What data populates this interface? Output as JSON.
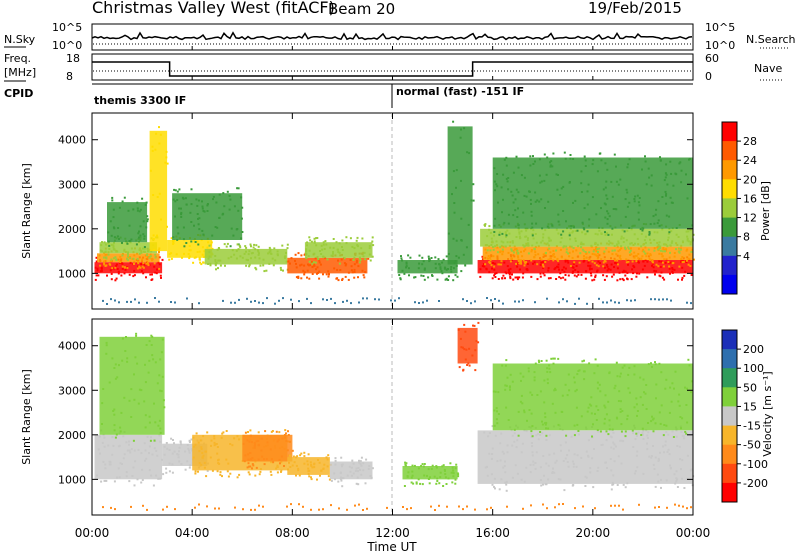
{
  "header": {
    "radar": "Christmas Valley West (fitACF)",
    "beam": "Beam 20",
    "date": "19/Feb/2015"
  },
  "noise_panel": {
    "left_label": "N.Sky",
    "left_ticks": [
      "10^5",
      "10^0"
    ],
    "right_ticks": [
      "10^5",
      "10^0"
    ],
    "right_label": "N.Search"
  },
  "freq_panel": {
    "left_label_1": "Freq.",
    "left_label_2": "[MHz]",
    "left_ticks": [
      "18",
      "8"
    ],
    "right_ticks": [
      "60",
      "0"
    ],
    "right_label": "Nave"
  },
  "cpid_panel": {
    "label": "CPID",
    "modes": [
      "themis 3300 IF",
      "normal (fast) -151 IF"
    ]
  },
  "power_colorbar": {
    "title": "Power [dB]",
    "ticks": [
      "28",
      "24",
      "20",
      "16",
      "12",
      "8",
      "4"
    ],
    "colors": [
      "#ff0000",
      "#ff5a00",
      "#ff9900",
      "#ffdd00",
      "#9bcc3a",
      "#3a9a3a",
      "#3a7aa0",
      "#2222cc",
      "#0000ee"
    ]
  },
  "velocity_colorbar": {
    "title": "Velocity [m s⁻¹]",
    "ticks": [
      "200",
      "100",
      "50",
      "15",
      "-15",
      "-50",
      "-100",
      "-200"
    ],
    "colors": [
      "#1b2fb8",
      "#2e6fae",
      "#2f9c5a",
      "#7fd03a",
      "#c8c8c8",
      "#f7b52a",
      "#ff8a1a",
      "#ff4a10",
      "#ff0000"
    ]
  },
  "chart_data": {
    "type": "heatmap",
    "xlabel": "Time UT",
    "x_ticks": [
      "00:00",
      "04:00",
      "08:00",
      "12:00",
      "16:00",
      "20:00",
      "00:00"
    ],
    "x_hours": [
      0,
      4,
      8,
      12,
      16,
      20,
      24
    ],
    "xlim": [
      0,
      24
    ],
    "ylabel": "Slant Range [km]",
    "y_ticks": [
      1000,
      2000,
      3000,
      4000
    ],
    "ylim": [
      200,
      4600
    ],
    "mode_change_hour": 12.0,
    "freq_mhz": [
      {
        "x0": 0,
        "x1": 3.1,
        "mhz": 17
      },
      {
        "x0": 3.1,
        "x1": 15.2,
        "mhz": 10
      },
      {
        "x0": 15.2,
        "x1": 24,
        "mhz": 17
      }
    ],
    "power_regions": [
      {
        "t0": 0.1,
        "t1": 2.8,
        "r0": 1000,
        "r1": 1250,
        "level": "28"
      },
      {
        "t0": 0.2,
        "t1": 2.7,
        "r0": 1250,
        "r1": 1450,
        "level": "20"
      },
      {
        "t0": 0.3,
        "t1": 2.6,
        "r0": 1450,
        "r1": 1700,
        "level": "12"
      },
      {
        "t0": 0.6,
        "t1": 2.2,
        "r0": 1700,
        "r1": 2600,
        "level": "8"
      },
      {
        "t0": 2.3,
        "t1": 3.0,
        "r0": 1500,
        "r1": 4200,
        "level": "16"
      },
      {
        "t0": 3.0,
        "t1": 4.8,
        "r0": 1350,
        "r1": 1750,
        "level": "16"
      },
      {
        "t0": 3.2,
        "t1": 6.0,
        "r0": 1750,
        "r1": 2800,
        "level": "8"
      },
      {
        "t0": 4.5,
        "t1": 7.8,
        "r0": 1200,
        "r1": 1550,
        "level": "12"
      },
      {
        "t0": 7.8,
        "t1": 11.0,
        "r0": 1000,
        "r1": 1350,
        "level": "24"
      },
      {
        "t0": 8.5,
        "t1": 11.2,
        "r0": 1350,
        "r1": 1700,
        "level": "12"
      },
      {
        "t0": 12.2,
        "t1": 14.6,
        "r0": 1000,
        "r1": 1300,
        "level": "8"
      },
      {
        "t0": 14.2,
        "t1": 15.2,
        "r0": 1200,
        "r1": 4300,
        "level": "8"
      },
      {
        "t0": 15.4,
        "t1": 24.0,
        "r0": 1000,
        "r1": 1300,
        "level": "28"
      },
      {
        "t0": 15.6,
        "t1": 24.0,
        "r0": 1300,
        "r1": 1600,
        "level": "20"
      },
      {
        "t0": 15.5,
        "t1": 24.0,
        "r0": 1600,
        "r1": 2000,
        "level": "12"
      },
      {
        "t0": 16.0,
        "t1": 24.0,
        "r0": 2000,
        "r1": 3600,
        "level": "8"
      }
    ],
    "velocity_regions": [
      {
        "t0": 0.1,
        "t1": 2.8,
        "r0": 1000,
        "r1": 2000,
        "level": "-15"
      },
      {
        "t0": 0.3,
        "t1": 2.9,
        "r0": 2000,
        "r1": 4200,
        "level": "15"
      },
      {
        "t0": 2.8,
        "t1": 4.6,
        "r0": 1300,
        "r1": 1800,
        "level": "-15"
      },
      {
        "t0": 4.0,
        "t1": 7.8,
        "r0": 1200,
        "r1": 2000,
        "level": "-50"
      },
      {
        "t0": 6.0,
        "t1": 8.0,
        "r0": 1400,
        "r1": 2000,
        "level": "-100"
      },
      {
        "t0": 7.8,
        "t1": 9.5,
        "r0": 1100,
        "r1": 1500,
        "level": "-50"
      },
      {
        "t0": 9.5,
        "t1": 11.2,
        "r0": 1000,
        "r1": 1400,
        "level": "-15"
      },
      {
        "t0": 12.4,
        "t1": 14.6,
        "r0": 1000,
        "r1": 1300,
        "level": "15"
      },
      {
        "t0": 14.6,
        "t1": 15.4,
        "r0": 3600,
        "r1": 4400,
        "level": "-200"
      },
      {
        "t0": 15.4,
        "t1": 24.0,
        "r0": 900,
        "r1": 2100,
        "level": "-15"
      },
      {
        "t0": 16.0,
        "t1": 24.0,
        "r0": 2100,
        "r1": 3600,
        "level": "15"
      }
    ]
  }
}
